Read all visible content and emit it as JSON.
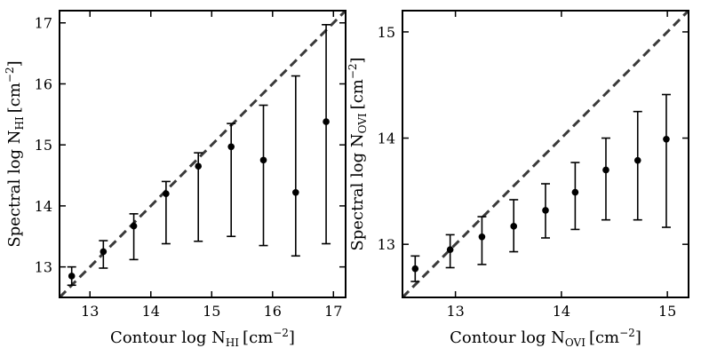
{
  "chart_data": [
    {
      "type": "scatter",
      "xlabel": "Contour log N",
      "xlabel_sub": "HI",
      "ylabel": "Spectral log N",
      "ylabel_sub": "HI",
      "unit": "[cm",
      "unit_exp": "−2",
      "xlim": [
        12.5,
        17.2
      ],
      "ylim": [
        12.5,
        17.2
      ],
      "xticks": [
        13,
        14,
        15,
        16,
        17
      ],
      "yticks": [
        13,
        14,
        15,
        16,
        17
      ],
      "grid": false,
      "identity_line": true,
      "points": [
        {
          "x": 12.7,
          "y": 12.85,
          "ylo": 12.7,
          "yhi": 13.0
        },
        {
          "x": 13.22,
          "y": 13.25,
          "ylo": 12.98,
          "yhi": 13.43
        },
        {
          "x": 13.72,
          "y": 13.67,
          "ylo": 13.12,
          "yhi": 13.87
        },
        {
          "x": 14.25,
          "y": 14.2,
          "ylo": 13.38,
          "yhi": 14.4
        },
        {
          "x": 14.78,
          "y": 14.65,
          "ylo": 13.42,
          "yhi": 14.87
        },
        {
          "x": 15.32,
          "y": 14.97,
          "ylo": 13.5,
          "yhi": 15.35
        },
        {
          "x": 15.85,
          "y": 14.75,
          "ylo": 13.35,
          "yhi": 15.65
        },
        {
          "x": 16.38,
          "y": 14.22,
          "ylo": 13.18,
          "yhi": 16.13
        },
        {
          "x": 16.88,
          "y": 15.38,
          "ylo": 13.38,
          "yhi": 16.97
        }
      ]
    },
    {
      "type": "scatter",
      "xlabel": "Contour log N",
      "xlabel_sub": "OVI",
      "ylabel": "Spectral log N",
      "ylabel_sub": "OVI",
      "unit": "[cm",
      "unit_exp": "−2",
      "xlim": [
        12.5,
        15.2
      ],
      "ylim": [
        12.5,
        15.2
      ],
      "xticks": [
        13,
        14,
        15
      ],
      "yticks": [
        13,
        14,
        15
      ],
      "grid": false,
      "identity_line": true,
      "points": [
        {
          "x": 12.62,
          "y": 12.77,
          "ylo": 12.65,
          "yhi": 12.89
        },
        {
          "x": 12.95,
          "y": 12.95,
          "ylo": 12.78,
          "yhi": 13.09
        },
        {
          "x": 13.25,
          "y": 13.07,
          "ylo": 12.81,
          "yhi": 13.26
        },
        {
          "x": 13.55,
          "y": 13.17,
          "ylo": 12.93,
          "yhi": 13.42
        },
        {
          "x": 13.85,
          "y": 13.32,
          "ylo": 13.06,
          "yhi": 13.57
        },
        {
          "x": 14.13,
          "y": 13.49,
          "ylo": 13.14,
          "yhi": 13.77
        },
        {
          "x": 14.42,
          "y": 13.7,
          "ylo": 13.23,
          "yhi": 14.0
        },
        {
          "x": 14.72,
          "y": 13.79,
          "ylo": 13.23,
          "yhi": 14.25
        },
        {
          "x": 14.99,
          "y": 13.99,
          "ylo": 13.16,
          "yhi": 14.41
        }
      ]
    }
  ]
}
